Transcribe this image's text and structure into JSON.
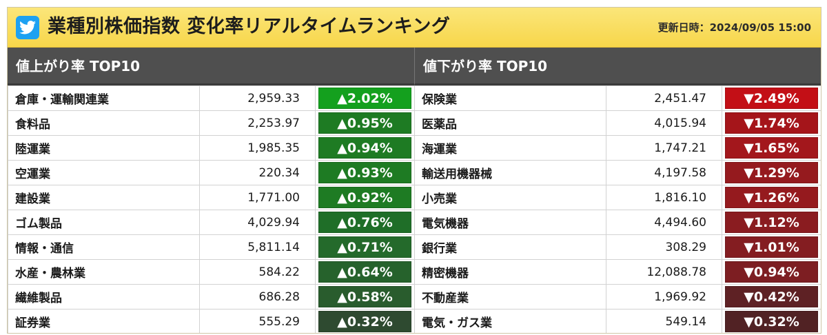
{
  "header": {
    "title": "業種別株価指数 変化率リアルタイムランキング",
    "updated_label": "更新日時：",
    "updated_value": "2024/09/05 15:00",
    "twitter_color": "#1da1f2"
  },
  "up": {
    "heading": "値上がり率 TOP10",
    "rows": [
      {
        "name": "倉庫・運輸関連業",
        "value": "2,959.33",
        "change": "▲2.02%",
        "color": "#14a01e"
      },
      {
        "name": "食料品",
        "value": "2,253.97",
        "change": "▲0.95%",
        "color": "#1e7b23"
      },
      {
        "name": "陸運業",
        "value": "1,985.35",
        "change": "▲0.94%",
        "color": "#1e7b23"
      },
      {
        "name": "空運業",
        "value": "220.34",
        "change": "▲0.93%",
        "color": "#1e7b23"
      },
      {
        "name": "建設業",
        "value": "1,771.00",
        "change": "▲0.92%",
        "color": "#1e7b23"
      },
      {
        "name": "ゴム製品",
        "value": "4,029.94",
        "change": "▲0.76%",
        "color": "#1f6e28"
      },
      {
        "name": "情報・通信",
        "value": "5,811.14",
        "change": "▲0.71%",
        "color": "#246a2b"
      },
      {
        "name": "水産・農林業",
        "value": "584.22",
        "change": "▲0.64%",
        "color": "#26622c"
      },
      {
        "name": "繊維製品",
        "value": "686.28",
        "change": "▲0.58%",
        "color": "#295c2d"
      },
      {
        "name": "証券業",
        "value": "555.29",
        "change": "▲0.32%",
        "color": "#2e4a30"
      }
    ]
  },
  "down": {
    "heading": "値下がり率 TOP10",
    "rows": [
      {
        "name": "保険業",
        "value": "2,451.47",
        "change": "▼2.49%",
        "color": "#c30f16"
      },
      {
        "name": "医薬品",
        "value": "4,015.94",
        "change": "▼1.74%",
        "color": "#a5151a"
      },
      {
        "name": "海運業",
        "value": "1,747.21",
        "change": "▼1.65%",
        "color": "#a3171c"
      },
      {
        "name": "輸送用機器械",
        "value": "4,197.58",
        "change": "▼1.29%",
        "color": "#951a1e"
      },
      {
        "name": "小売業",
        "value": "1,816.10",
        "change": "▼1.26%",
        "color": "#951a1e"
      },
      {
        "name": "電気機器",
        "value": "4,494.60",
        "change": "▼1.12%",
        "color": "#8a1c20"
      },
      {
        "name": "銀行業",
        "value": "308.29",
        "change": "▼1.01%",
        "color": "#841d21"
      },
      {
        "name": "精密機器",
        "value": "12,088.78",
        "change": "▼0.94%",
        "color": "#7d1e22"
      },
      {
        "name": "不動産業",
        "value": "1,969.92",
        "change": "▼0.42%",
        "color": "#5e2124"
      },
      {
        "name": "電気・ガス業",
        "value": "549.14",
        "change": "▼0.32%",
        "color": "#512224"
      }
    ]
  }
}
